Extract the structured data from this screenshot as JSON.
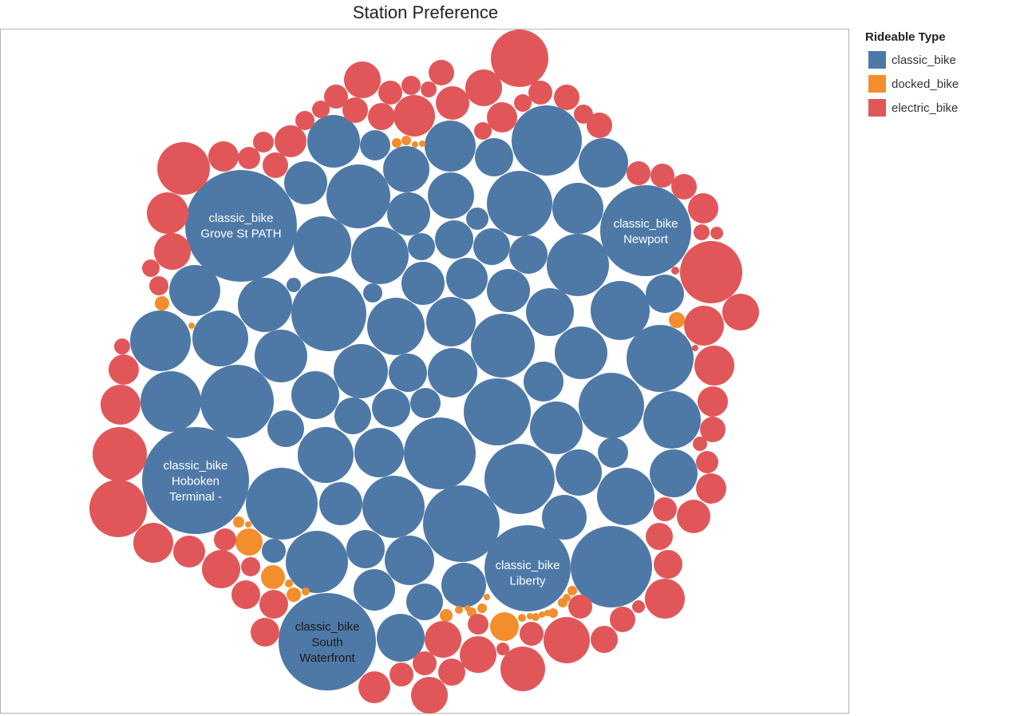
{
  "chart_data": {
    "type": "packed-bubble",
    "title": "Station Preference",
    "legend": {
      "title": "Rideable Type",
      "position": "top-right",
      "items": [
        {
          "name": "classic_bike",
          "color": "#4e79a7"
        },
        {
          "name": "docked_bike",
          "color": "#f28e2b"
        },
        {
          "name": "electric_bike",
          "color": "#e15759"
        }
      ]
    },
    "labeled_bubbles": [
      {
        "rideable_type": "classic_bike",
        "station": "Grove St PATH",
        "label_lines": [
          "classic_bike",
          "Grove St PATH"
        ]
      },
      {
        "rideable_type": "classic_bike",
        "station": "Newport",
        "label_lines": [
          "classic_bike",
          "Newport"
        ]
      },
      {
        "rideable_type": "classic_bike",
        "station": "Hoboken Terminal -",
        "label_lines": [
          "classic_bike",
          "Hoboken",
          "Terminal -"
        ]
      },
      {
        "rideable_type": "classic_bike",
        "station": "Liberty",
        "label_lines": [
          "classic_bike",
          "Liberty"
        ]
      },
      {
        "rideable_type": "classic_bike",
        "station": "South Waterfront",
        "label_lines": [
          "classic_bike",
          "South",
          "Waterfront"
        ]
      }
    ]
  }
}
